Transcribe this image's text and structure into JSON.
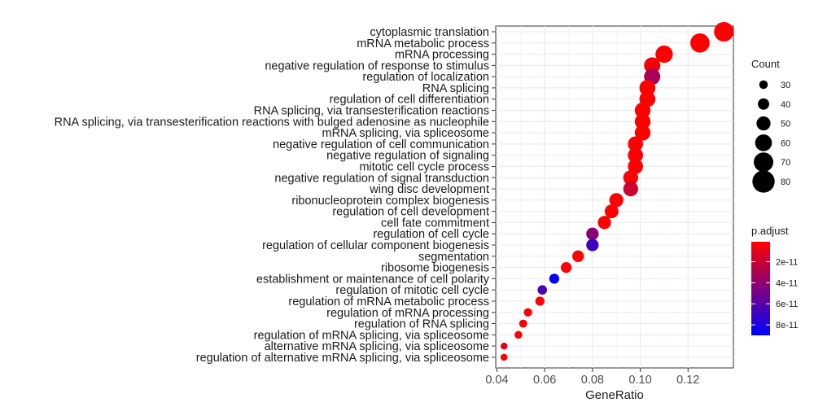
{
  "chart_data": {
    "type": "scatter",
    "xlabel": "GeneRatio",
    "ylabel": "",
    "xlim": [
      0.0395,
      0.139
    ],
    "x_ticks": [
      0.04,
      0.06,
      0.08,
      0.1,
      0.12
    ],
    "x_tick_labels": [
      "0.04",
      "0.06",
      "0.08",
      "0.10",
      "0.12"
    ],
    "grid": true,
    "legend_position": "right",
    "points": [
      {
        "term": "cytoplasmic translation",
        "gene_ratio": 0.135,
        "count": 70,
        "p_adjust": 1e-12
      },
      {
        "term": "mRNA metabolic process",
        "gene_ratio": 0.125,
        "count": 69,
        "p_adjust": 1e-12
      },
      {
        "term": "mRNA processing",
        "gene_ratio": 0.11,
        "count": 62,
        "p_adjust": 1e-12
      },
      {
        "term": "negative regulation of response to stimulus",
        "gene_ratio": 0.105,
        "count": 58,
        "p_adjust": 5e-12
      },
      {
        "term": "regulation of localization",
        "gene_ratio": 0.105,
        "count": 58,
        "p_adjust": 3.2e-11
      },
      {
        "term": "RNA splicing",
        "gene_ratio": 0.103,
        "count": 57,
        "p_adjust": 1e-12
      },
      {
        "term": "regulation of cell differentiation",
        "gene_ratio": 0.103,
        "count": 57,
        "p_adjust": 1e-12
      },
      {
        "term": "RNA splicing, via transesterification reactions",
        "gene_ratio": 0.101,
        "count": 56,
        "p_adjust": 1e-12
      },
      {
        "term": "RNA splicing, via transesterification reactions with bulged adenosine as nucleophile",
        "gene_ratio": 0.101,
        "count": 56,
        "p_adjust": 1e-12
      },
      {
        "term": "mRNA splicing, via spliceosome",
        "gene_ratio": 0.101,
        "count": 56,
        "p_adjust": 1e-12
      },
      {
        "term": "negative regulation of cell communication",
        "gene_ratio": 0.098,
        "count": 54,
        "p_adjust": 2e-12
      },
      {
        "term": "negative regulation of signaling",
        "gene_ratio": 0.098,
        "count": 54,
        "p_adjust": 2e-12
      },
      {
        "term": "mitotic cell cycle process",
        "gene_ratio": 0.098,
        "count": 54,
        "p_adjust": 2e-12
      },
      {
        "term": "negative regulation of signal transduction",
        "gene_ratio": 0.096,
        "count": 53,
        "p_adjust": 2e-12
      },
      {
        "term": "wing disc development",
        "gene_ratio": 0.096,
        "count": 53,
        "p_adjust": 1.8e-11
      },
      {
        "term": "ribonucleoprotein complex biogenesis",
        "gene_ratio": 0.09,
        "count": 50,
        "p_adjust": 1e-12
      },
      {
        "term": "regulation of cell development",
        "gene_ratio": 0.088,
        "count": 49,
        "p_adjust": 1e-12
      },
      {
        "term": "cell fate commitment",
        "gene_ratio": 0.085,
        "count": 47,
        "p_adjust": 2e-12
      },
      {
        "term": "regulation of cell cycle",
        "gene_ratio": 0.08,
        "count": 44,
        "p_adjust": 4.3e-11
      },
      {
        "term": "regulation of cellular component biogenesis",
        "gene_ratio": 0.08,
        "count": 44,
        "p_adjust": 6.8e-11
      },
      {
        "term": "segmentation",
        "gene_ratio": 0.074,
        "count": 41,
        "p_adjust": 2e-12
      },
      {
        "term": "ribosome biogenesis",
        "gene_ratio": 0.069,
        "count": 38,
        "p_adjust": 1e-12
      },
      {
        "term": "establishment or maintenance of cell polarity",
        "gene_ratio": 0.064,
        "count": 35,
        "p_adjust": 9e-11
      },
      {
        "term": "regulation of mitotic cell cycle",
        "gene_ratio": 0.059,
        "count": 33,
        "p_adjust": 6.5e-11
      },
      {
        "term": "regulation of mRNA metabolic process",
        "gene_ratio": 0.058,
        "count": 32,
        "p_adjust": 2e-12
      },
      {
        "term": "regulation of mRNA processing",
        "gene_ratio": 0.053,
        "count": 29,
        "p_adjust": 2e-12
      },
      {
        "term": "regulation of RNA splicing",
        "gene_ratio": 0.051,
        "count": 28,
        "p_adjust": 2e-12
      },
      {
        "term": "regulation of mRNA splicing, via spliceosome",
        "gene_ratio": 0.049,
        "count": 27,
        "p_adjust": 2e-12
      },
      {
        "term": "alternative mRNA splicing, via spliceosome",
        "gene_ratio": 0.043,
        "count": 24,
        "p_adjust": 1e-11
      },
      {
        "term": "regulation of alternative mRNA splicing, via spliceosome",
        "gene_ratio": 0.043,
        "count": 24,
        "p_adjust": 2e-12
      }
    ],
    "size_legend": {
      "title": "Count",
      "values": [
        30,
        40,
        50,
        60,
        70,
        80
      ],
      "labels": [
        "30",
        "40",
        "50",
        "60",
        "70",
        "80"
      ]
    },
    "color_legend": {
      "title": "p.adjust",
      "range": [
        1e-12,
        9e-11
      ],
      "low_color": "#ff0000",
      "high_color": "#0000ff",
      "ticks": [
        2e-11,
        4e-11,
        6e-11,
        8e-11
      ],
      "tick_labels": [
        "2e-11",
        "4e-11",
        "6e-11",
        "8e-11"
      ]
    }
  }
}
